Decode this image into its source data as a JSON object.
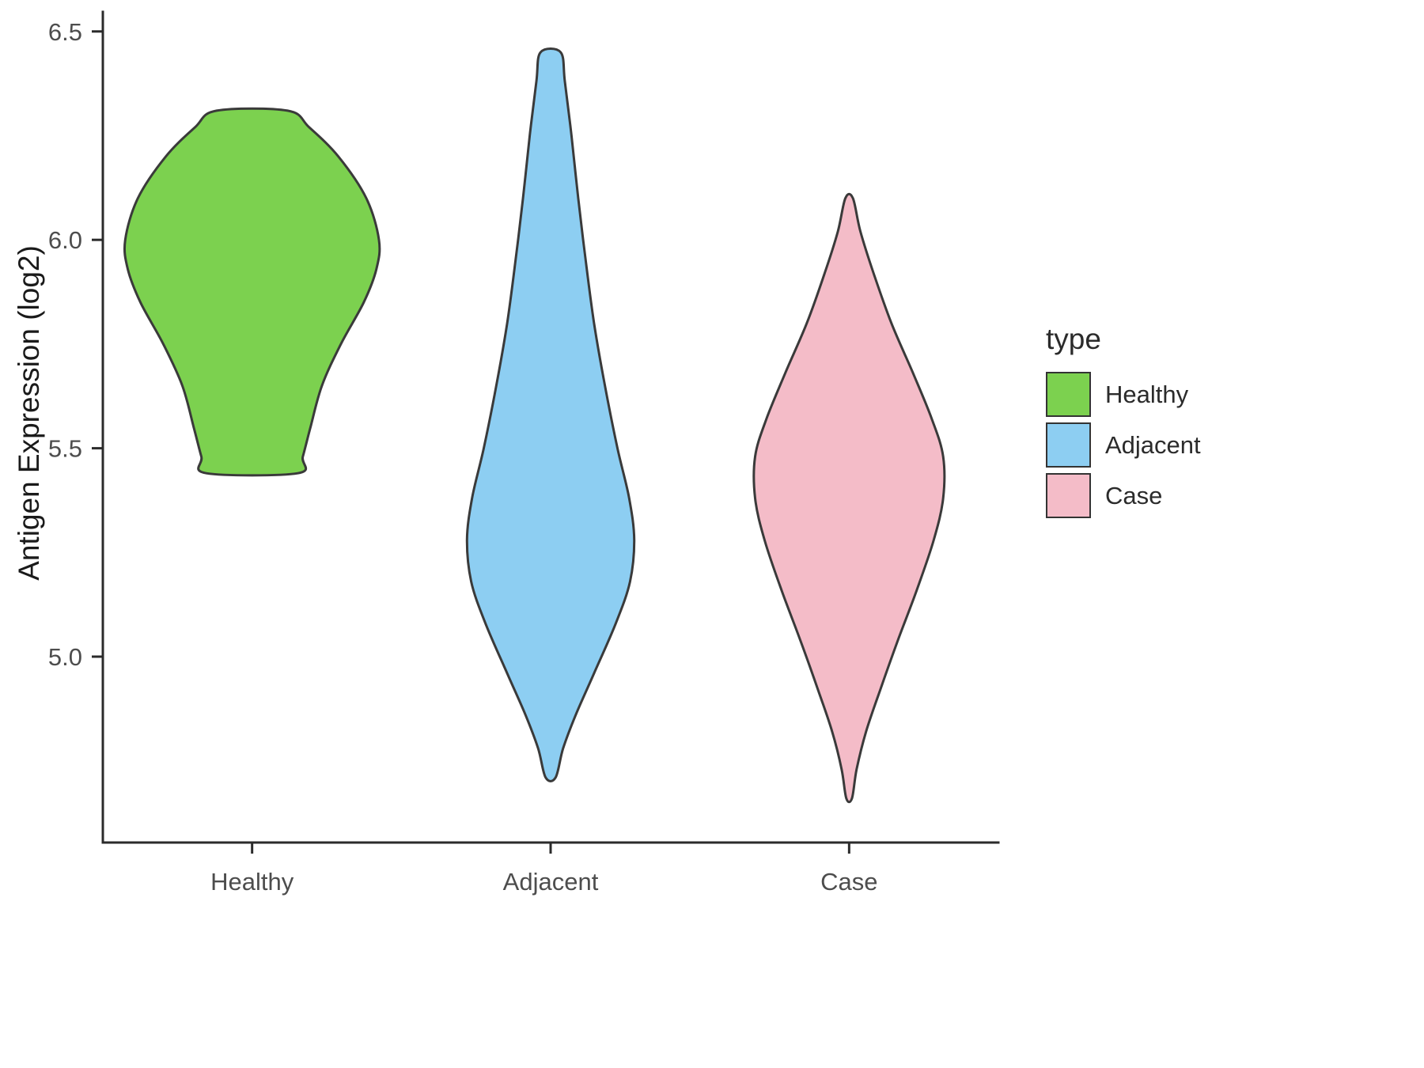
{
  "chart_data": {
    "type": "violin",
    "title": "",
    "xlabel": "",
    "ylabel": "Antigen Expression (log2)",
    "categories": [
      "Healthy",
      "Adjacent",
      "Case"
    ],
    "y_ticks": [
      5.0,
      5.5,
      6.0,
      6.5
    ],
    "ylim": [
      4.554,
      6.547
    ],
    "grid": false,
    "axis_color": "#2b2b2b",
    "tick_label_color": "#4d4d4d",
    "violin_stroke_color": "#3a3a3a",
    "legend": {
      "title": "type",
      "position": "right",
      "entries": [
        {
          "label": "Healthy",
          "color": "#7cd14f"
        },
        {
          "label": "Adjacent",
          "color": "#8dcef2"
        },
        {
          "label": "Case",
          "color": "#f4bcc8"
        }
      ]
    },
    "series": [
      {
        "name": "Healthy",
        "color": "#7cd14f",
        "y_range": [
          5.44,
          6.31
        ],
        "max_halfwidth": 0.85,
        "profile": [
          [
            6.31,
            0.28
          ],
          [
            6.27,
            0.45
          ],
          [
            6.2,
            0.68
          ],
          [
            6.1,
            0.9
          ],
          [
            6.0,
            1.0
          ],
          [
            5.93,
            0.98
          ],
          [
            5.85,
            0.88
          ],
          [
            5.75,
            0.7
          ],
          [
            5.65,
            0.55
          ],
          [
            5.55,
            0.46
          ],
          [
            5.48,
            0.4
          ],
          [
            5.44,
            0.36
          ]
        ]
      },
      {
        "name": "Adjacent",
        "color": "#8dcef2",
        "y_range": [
          4.71,
          6.45
        ],
        "max_halfwidth": 0.56,
        "profile": [
          [
            6.45,
            0.12
          ],
          [
            6.38,
            0.17
          ],
          [
            6.25,
            0.25
          ],
          [
            6.1,
            0.33
          ],
          [
            5.95,
            0.42
          ],
          [
            5.8,
            0.52
          ],
          [
            5.65,
            0.65
          ],
          [
            5.5,
            0.8
          ],
          [
            5.38,
            0.94
          ],
          [
            5.28,
            1.0
          ],
          [
            5.18,
            0.95
          ],
          [
            5.08,
            0.78
          ],
          [
            4.96,
            0.52
          ],
          [
            4.86,
            0.3
          ],
          [
            4.78,
            0.15
          ],
          [
            4.71,
            0.06
          ]
        ]
      },
      {
        "name": "Case",
        "color": "#f4bcc8",
        "y_range": [
          4.66,
          6.1
        ],
        "max_halfwidth": 0.63,
        "profile": [
          [
            6.1,
            0.04
          ],
          [
            6.02,
            0.12
          ],
          [
            5.92,
            0.26
          ],
          [
            5.8,
            0.45
          ],
          [
            5.68,
            0.68
          ],
          [
            5.57,
            0.88
          ],
          [
            5.48,
            1.0
          ],
          [
            5.38,
            1.0
          ],
          [
            5.28,
            0.9
          ],
          [
            5.16,
            0.72
          ],
          [
            5.04,
            0.52
          ],
          [
            4.92,
            0.33
          ],
          [
            4.82,
            0.18
          ],
          [
            4.73,
            0.08
          ],
          [
            4.66,
            0.03
          ]
        ]
      }
    ]
  }
}
